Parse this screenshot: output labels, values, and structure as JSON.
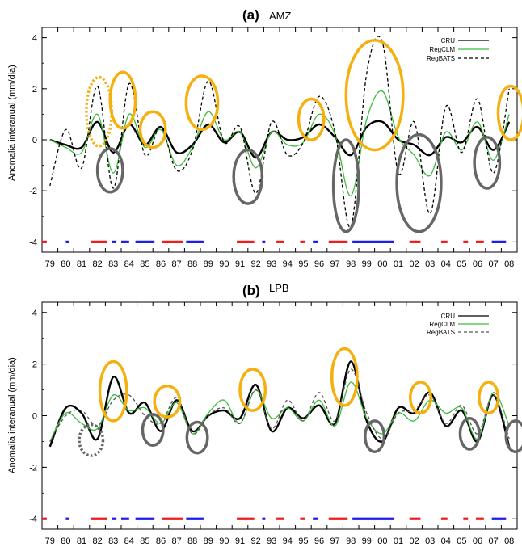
{
  "chart_data": [
    {
      "type": "line",
      "panel_label": "(a)",
      "region": "AMZ",
      "ylabel": "Anomalia interanual  (mm/dia)",
      "ylim": [
        -4.4,
        4.4
      ],
      "yticks": [
        -4,
        -2,
        0,
        2,
        4
      ],
      "xlim": [
        1979,
        2009
      ],
      "xticklabels": [
        "79",
        "80",
        "81",
        "82",
        "83",
        "84",
        "85",
        "86",
        "87",
        "88",
        "89",
        "90",
        "91",
        "92",
        "93",
        "94",
        "95",
        "96",
        "97",
        "98",
        "99",
        "00",
        "01",
        "02",
        "03",
        "04",
        "05",
        "06",
        "07",
        "08"
      ],
      "legend": {
        "position": "top-right",
        "entries": [
          "CRU",
          "RegCLM",
          "RegBATS"
        ]
      },
      "series": [
        {
          "name": "CRU",
          "color": "#000000",
          "style": "solid",
          "x": [
            1979,
            1980,
            1981,
            1982,
            1983,
            1984,
            1985,
            1986,
            1987,
            1988,
            1989,
            1990,
            1991,
            1992,
            1993,
            1994,
            1995,
            1996,
            1997,
            1998,
            1999,
            2000,
            2001,
            2002,
            2003,
            2004,
            2005,
            2006,
            2007,
            2008
          ],
          "y": [
            0.0,
            -0.2,
            -0.3,
            0.7,
            -0.5,
            0.6,
            -0.2,
            0.5,
            -0.5,
            -0.2,
            0.6,
            -0.1,
            0.3,
            -0.7,
            0.3,
            0.0,
            0.1,
            0.6,
            0.1,
            -0.6,
            0.5,
            0.7,
            0.0,
            -0.2,
            -0.6,
            0.1,
            -0.1,
            0.5,
            -0.4,
            0.7
          ]
        },
        {
          "name": "RegCLM",
          "color": "#3cba3c",
          "style": "solid",
          "x": [
            1979,
            1980,
            1981,
            1982,
            1983,
            1984,
            1985,
            1986,
            1987,
            1988,
            1989,
            1990,
            1991,
            1992,
            1993,
            1994,
            1995,
            1996,
            1997,
            1998,
            1999,
            2000,
            2001,
            2002,
            2003,
            2004,
            2005,
            2006,
            2007,
            2008
          ],
          "y": [
            0.0,
            -0.3,
            -0.5,
            1.0,
            -1.3,
            1.0,
            -0.3,
            0.4,
            -1.0,
            -0.3,
            1.1,
            0.0,
            0.3,
            -1.1,
            0.3,
            -0.2,
            -0.1,
            1.0,
            0.2,
            -2.2,
            0.8,
            1.9,
            0.1,
            -0.6,
            -1.4,
            0.3,
            -0.4,
            0.7,
            -0.8,
            1.0
          ]
        },
        {
          "name": "RegBATS",
          "color": "#000000",
          "style": "dashed",
          "x": [
            1979,
            1980,
            1981,
            1982,
            1983,
            1984,
            1985,
            1986,
            1987,
            1988,
            1989,
            1990,
            1991,
            1992,
            1993,
            1994,
            1995,
            1996,
            1997,
            1998,
            1999,
            2000,
            2001,
            2002,
            2003,
            2004,
            2005,
            2006,
            2007,
            2008
          ],
          "y": [
            -1.8,
            0.4,
            -1.1,
            2.1,
            -1.9,
            2.2,
            -0.6,
            0.5,
            -1.2,
            -0.4,
            2.3,
            -0.1,
            0.5,
            -2.1,
            0.7,
            -0.6,
            -0.1,
            1.7,
            0.3,
            -3.4,
            2.6,
            3.8,
            -1.3,
            0.7,
            -2.9,
            1.3,
            -0.5,
            1.6,
            -1.3,
            2.0
          ]
        }
      ],
      "event_bars_y": -4,
      "event_bars": [
        {
          "color": "red",
          "x": [
            1979.0,
            1979.3
          ]
        },
        {
          "color": "blue",
          "x": [
            1980.5,
            1980.7
          ]
        },
        {
          "color": "red",
          "x": [
            1982.1,
            1983.1
          ]
        },
        {
          "color": "blue",
          "x": [
            1983.4,
            1983.7
          ]
        },
        {
          "color": "blue",
          "x": [
            1984.0,
            1984.5
          ]
        },
        {
          "color": "blue",
          "x": [
            1984.9,
            1986.1
          ]
        },
        {
          "color": "red",
          "x": [
            1986.6,
            1987.9
          ]
        },
        {
          "color": "blue",
          "x": [
            1988.1,
            1989.2
          ]
        },
        {
          "color": "red",
          "x": [
            1991.3,
            1992.4
          ]
        },
        {
          "color": "blue",
          "x": [
            1992.9,
            1993.1
          ]
        },
        {
          "color": "red",
          "x": [
            1993.8,
            1994.3
          ]
        },
        {
          "color": "red",
          "x": [
            1995.3,
            1995.6
          ]
        },
        {
          "color": "blue",
          "x": [
            1996.1,
            1996.4
          ]
        },
        {
          "color": "red",
          "x": [
            1997.1,
            1998.3
          ]
        },
        {
          "color": "blue",
          "x": [
            1998.6,
            2001.2
          ]
        },
        {
          "color": "red",
          "x": [
            2002.2,
            2002.9
          ]
        },
        {
          "color": "red",
          "x": [
            2004.2,
            2004.6
          ]
        },
        {
          "color": "red",
          "x": [
            2005.6,
            2005.9
          ]
        },
        {
          "color": "red",
          "x": [
            2006.4,
            2006.9
          ]
        },
        {
          "color": "blue",
          "x": [
            2007.4,
            2008.3
          ]
        }
      ],
      "highlight_ellipses": [
        {
          "color": "orange",
          "style": "dotted",
          "cx": 1982.6,
          "cy": 1.1,
          "rx": 0.8,
          "ry": 1.35
        },
        {
          "color": "orange",
          "style": "solid",
          "cx": 1984.1,
          "cy": 1.55,
          "rx": 0.8,
          "ry": 1.1
        },
        {
          "color": "orange",
          "style": "solid",
          "cx": 1986.0,
          "cy": 0.4,
          "rx": 0.8,
          "ry": 0.7
        },
        {
          "color": "orange",
          "style": "solid",
          "cx": 1989.1,
          "cy": 1.45,
          "rx": 1.0,
          "ry": 1.05
        },
        {
          "color": "orange",
          "style": "solid",
          "cx": 1996.0,
          "cy": 0.8,
          "rx": 0.8,
          "ry": 0.8
        },
        {
          "color": "orange",
          "style": "solid",
          "cx": 2000.0,
          "cy": 1.75,
          "rx": 1.8,
          "ry": 2.15
        },
        {
          "color": "orange",
          "style": "solid",
          "cx": 2008.6,
          "cy": 1.05,
          "rx": 0.8,
          "ry": 1.05
        },
        {
          "color": "gray",
          "style": "solid",
          "cx": 1983.3,
          "cy": -1.2,
          "rx": 0.8,
          "ry": 0.85
        },
        {
          "color": "gray",
          "style": "solid",
          "cx": 1992.0,
          "cy": -1.45,
          "rx": 0.9,
          "ry": 1.05
        },
        {
          "color": "gray",
          "style": "solid",
          "cx": 1998.2,
          "cy": -1.8,
          "rx": 0.8,
          "ry": 1.8
        },
        {
          "color": "gray",
          "style": "solid",
          "cx": 2002.8,
          "cy": -1.7,
          "rx": 1.4,
          "ry": 1.9
        },
        {
          "color": "gray",
          "style": "solid",
          "cx": 2007.1,
          "cy": -0.9,
          "rx": 0.8,
          "ry": 1.0
        }
      ]
    },
    {
      "type": "line",
      "panel_label": "(b)",
      "region": "LPB",
      "ylabel": "Anomalia interanual  (mm/dia)",
      "ylim": [
        -4.4,
        4.4
      ],
      "yticks": [
        -4,
        -2,
        0,
        2,
        4
      ],
      "xlim": [
        1979,
        2009
      ],
      "xticklabels": [
        "79",
        "80",
        "81",
        "82",
        "83",
        "84",
        "85",
        "86",
        "87",
        "88",
        "89",
        "90",
        "91",
        "92",
        "93",
        "94",
        "95",
        "96",
        "97",
        "98",
        "99",
        "00",
        "01",
        "02",
        "03",
        "04",
        "05",
        "06",
        "07",
        "08"
      ],
      "legend": {
        "position": "top-right",
        "entries": [
          "CRU",
          "RegCLM",
          "RegBATS"
        ]
      },
      "series": [
        {
          "name": "CRU",
          "color": "#000000",
          "style": "solid",
          "x": [
            1979,
            1980,
            1981,
            1982,
            1983,
            1984,
            1985,
            1986,
            1987,
            1988,
            1989,
            1990,
            1991,
            1992,
            1993,
            1994,
            1995,
            1996,
            1997,
            1998,
            1999,
            2000,
            2001,
            2002,
            2003,
            2004,
            2005,
            2006,
            2007,
            2008
          ],
          "y": [
            -1.2,
            0.3,
            0.1,
            -0.9,
            1.5,
            0.1,
            0.5,
            -0.6,
            0.6,
            -0.6,
            0.0,
            0.2,
            -0.1,
            1.2,
            -0.6,
            0.3,
            -0.1,
            0.4,
            -0.3,
            2.1,
            -0.2,
            -1.0,
            0.3,
            0.1,
            0.9,
            -0.4,
            0.2,
            -1.0,
            0.8,
            -1.2
          ]
        },
        {
          "name": "RegCLM",
          "color": "#3cba3c",
          "style": "solid",
          "x": [
            1979,
            1980,
            1981,
            1982,
            1983,
            1984,
            1985,
            1986,
            1987,
            1988,
            1989,
            1990,
            1991,
            1992,
            1993,
            1994,
            1995,
            1996,
            1997,
            1998,
            1999,
            2000,
            2001,
            2002,
            2003,
            2004,
            2005,
            2006,
            2007,
            2008
          ],
          "y": [
            -1.0,
            0.1,
            -0.3,
            -0.5,
            0.8,
            0.2,
            0.3,
            -0.3,
            0.5,
            -0.7,
            0.1,
            0.6,
            -0.3,
            1.0,
            -0.1,
            0.3,
            -0.2,
            0.6,
            -0.4,
            1.3,
            -0.1,
            -0.7,
            0.1,
            -0.2,
            0.6,
            0.1,
            0.3,
            -0.9,
            0.9,
            -0.4
          ]
        },
        {
          "name": "RegBATS",
          "color": "#555555",
          "style": "dashed",
          "x": [
            1979,
            1980,
            1981,
            1982,
            1983,
            1984,
            1985,
            1986,
            1987,
            1988,
            1989,
            1990,
            1991,
            1992,
            1993,
            1994,
            1995,
            1996,
            1997,
            1998,
            1999,
            2000,
            2001,
            2002,
            2003,
            2004,
            2005,
            2006,
            2007,
            2008
          ],
          "y": [
            -1.0,
            0.0,
            0.2,
            -0.4,
            0.6,
            0.8,
            0.0,
            -0.3,
            0.7,
            -0.7,
            0.0,
            0.3,
            -0.3,
            1.0,
            -0.5,
            0.6,
            -0.2,
            0.9,
            -0.2,
            1.8,
            0.1,
            -0.9,
            0.1,
            0.2,
            0.8,
            -0.3,
            0.4,
            -0.7,
            0.8,
            -0.9
          ]
        }
      ],
      "event_bars_y": -4,
      "event_bars": [
        {
          "color": "red",
          "x": [
            1979.0,
            1979.3
          ]
        },
        {
          "color": "blue",
          "x": [
            1980.5,
            1980.7
          ]
        },
        {
          "color": "red",
          "x": [
            1982.1,
            1983.1
          ]
        },
        {
          "color": "blue",
          "x": [
            1983.4,
            1983.7
          ]
        },
        {
          "color": "blue",
          "x": [
            1984.0,
            1984.5
          ]
        },
        {
          "color": "blue",
          "x": [
            1984.9,
            1986.1
          ]
        },
        {
          "color": "red",
          "x": [
            1986.6,
            1987.9
          ]
        },
        {
          "color": "blue",
          "x": [
            1988.1,
            1989.2
          ]
        },
        {
          "color": "red",
          "x": [
            1991.3,
            1992.4
          ]
        },
        {
          "color": "blue",
          "x": [
            1992.9,
            1993.1
          ]
        },
        {
          "color": "red",
          "x": [
            1993.8,
            1994.3
          ]
        },
        {
          "color": "red",
          "x": [
            1995.3,
            1995.6
          ]
        },
        {
          "color": "blue",
          "x": [
            1996.1,
            1996.4
          ]
        },
        {
          "color": "red",
          "x": [
            1997.1,
            1998.3
          ]
        },
        {
          "color": "blue",
          "x": [
            1998.6,
            2001.2
          ]
        },
        {
          "color": "red",
          "x": [
            2002.2,
            2002.9
          ]
        },
        {
          "color": "red",
          "x": [
            2004.2,
            2004.6
          ]
        },
        {
          "color": "red",
          "x": [
            2005.6,
            2005.9
          ]
        },
        {
          "color": "red",
          "x": [
            2006.4,
            2006.9
          ]
        },
        {
          "color": "blue",
          "x": [
            2007.4,
            2008.3
          ]
        }
      ],
      "highlight_ellipses": [
        {
          "color": "gray",
          "style": "dotted",
          "cx": 1982.1,
          "cy": -0.95,
          "rx": 0.75,
          "ry": 0.6
        },
        {
          "color": "orange",
          "style": "solid",
          "cx": 1983.5,
          "cy": 0.95,
          "rx": 0.85,
          "ry": 1.15
        },
        {
          "color": "orange",
          "style": "solid",
          "cx": 1986.9,
          "cy": 0.55,
          "rx": 0.8,
          "ry": 0.6
        },
        {
          "color": "orange",
          "style": "solid",
          "cx": 1992.3,
          "cy": 1.0,
          "rx": 0.8,
          "ry": 0.8
        },
        {
          "color": "orange",
          "style": "solid",
          "cx": 1998.1,
          "cy": 1.5,
          "rx": 0.8,
          "ry": 1.1
        },
        {
          "color": "orange",
          "style": "solid",
          "cx": 2002.9,
          "cy": 0.7,
          "rx": 0.65,
          "ry": 0.6
        },
        {
          "color": "orange",
          "style": "solid",
          "cx": 2007.2,
          "cy": 0.7,
          "rx": 0.6,
          "ry": 0.6
        },
        {
          "color": "gray",
          "style": "solid",
          "cx": 1986.0,
          "cy": -0.55,
          "rx": 0.65,
          "ry": 0.6
        },
        {
          "color": "gray",
          "style": "solid",
          "cx": 1988.8,
          "cy": -0.85,
          "rx": 0.65,
          "ry": 0.6
        },
        {
          "color": "gray",
          "style": "solid",
          "cx": 2000.0,
          "cy": -0.8,
          "rx": 0.6,
          "ry": 0.6
        },
        {
          "color": "gray",
          "style": "solid",
          "cx": 2006.0,
          "cy": -0.7,
          "rx": 0.6,
          "ry": 0.6
        },
        {
          "color": "gray",
          "style": "solid",
          "cx": 2008.9,
          "cy": -0.8,
          "rx": 0.6,
          "ry": 0.6
        }
      ]
    }
  ],
  "colors": {
    "orange": "#f5b010",
    "gray": "#666666",
    "red": "#ee1c1c",
    "blue": "#1c1cee"
  }
}
